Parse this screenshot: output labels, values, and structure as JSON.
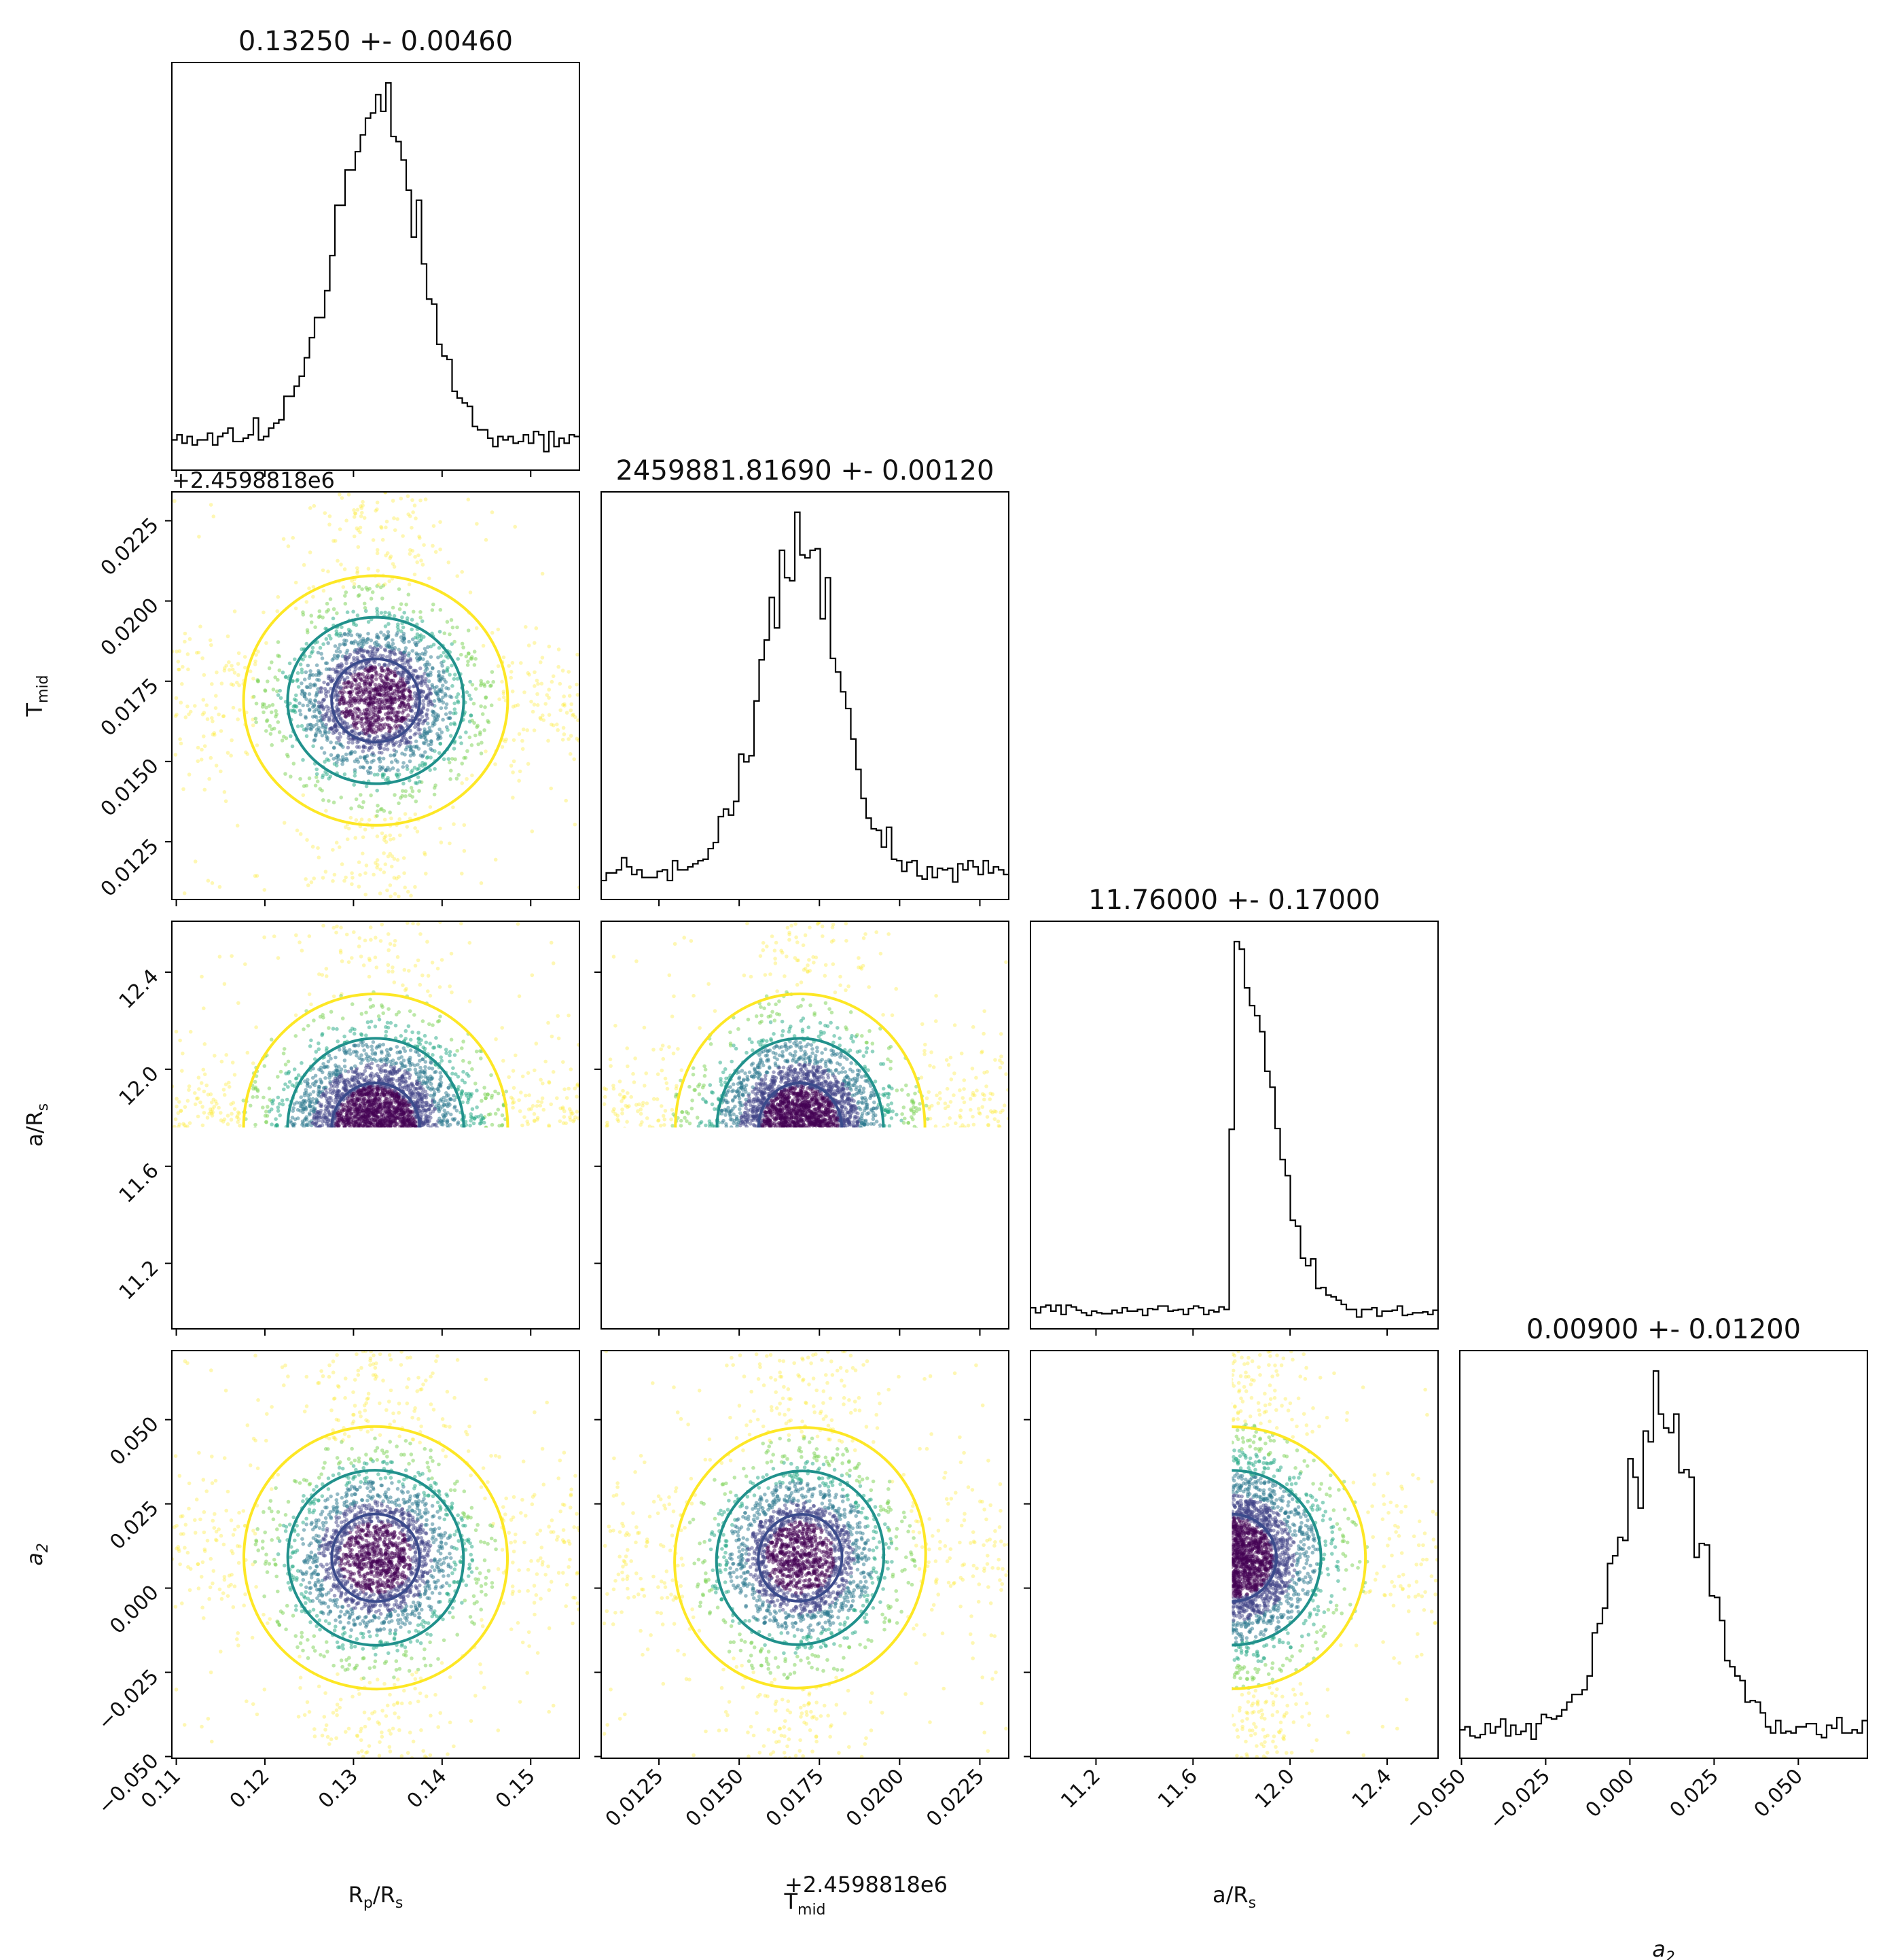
{
  "chart_data": {
    "type": "corner",
    "parameters": [
      {
        "id": "rp",
        "axis_label": "R$p$/R$s$",
        "label_main": "R",
        "label_sub1": "p",
        "label_mid": "/R",
        "label_sub2": "s",
        "title": "0.13250 +- 0.00460",
        "range": [
          0.1095,
          0.1555
        ],
        "ticks": [
          0.11,
          0.12,
          0.13,
          0.14,
          0.15
        ],
        "tick_labels": [
          "0.11",
          "0.12",
          "0.13",
          "0.14",
          "0.15"
        ],
        "mean": 0.1325,
        "sigma": 0.0046
      },
      {
        "id": "tmid",
        "axis_label": "T$mid$",
        "label_main": "T",
        "label_sub1": "mid",
        "label_mid": "",
        "label_sub2": "",
        "title": "2459881.81690 +- 0.00120",
        "range": [
          0.0107,
          0.0234
        ],
        "offset_text": "+2.4598818e6",
        "ticks": [
          0.0125,
          0.015,
          0.0175,
          0.02,
          0.0225
        ],
        "tick_labels": [
          "0.0125",
          "0.0150",
          "0.0175",
          "0.0200",
          "0.0225"
        ],
        "mean": 0.0169,
        "sigma": 0.0012
      },
      {
        "id": "ars",
        "axis_label": "a/R$s$",
        "label_main": "a/R",
        "label_sub1": "s",
        "label_mid": "",
        "label_sub2": "",
        "title": "11.76000 +- 0.17000",
        "range": [
          10.93,
          12.61
        ],
        "ticks": [
          11.2,
          11.6,
          12.0,
          12.4
        ],
        "tick_labels": [
          "11.2",
          "11.6",
          "12.0",
          "12.4"
        ],
        "mean": 11.76,
        "sigma": 0.17,
        "lower_bound": 11.76
      },
      {
        "id": "a2",
        "axis_label": "a$2$",
        "label_main": "a",
        "label_sub1": "2",
        "label_mid": "",
        "label_sub2": "",
        "italic": true,
        "title": "0.00900 +- 0.01200",
        "range": [
          -0.0505,
          0.0705
        ],
        "ticks": [
          -0.05,
          -0.025,
          0.0,
          0.025,
          0.05
        ],
        "tick_labels": [
          "−0.050",
          "−0.025",
          "0.000",
          "0.025",
          "0.050"
        ],
        "mean": 0.009,
        "sigma": 0.012
      }
    ],
    "contour_levels": [
      "1-sigma",
      "2-sigma",
      "3-sigma"
    ],
    "contour_colors": [
      "#3b4b8c",
      "#21918c",
      "#fde725"
    ],
    "scatter_colors": [
      "#fde725",
      "#7ad151",
      "#22a884",
      "#2a788e",
      "#414487",
      "#440154"
    ],
    "histogram_color": "#000000",
    "grid": false
  }
}
